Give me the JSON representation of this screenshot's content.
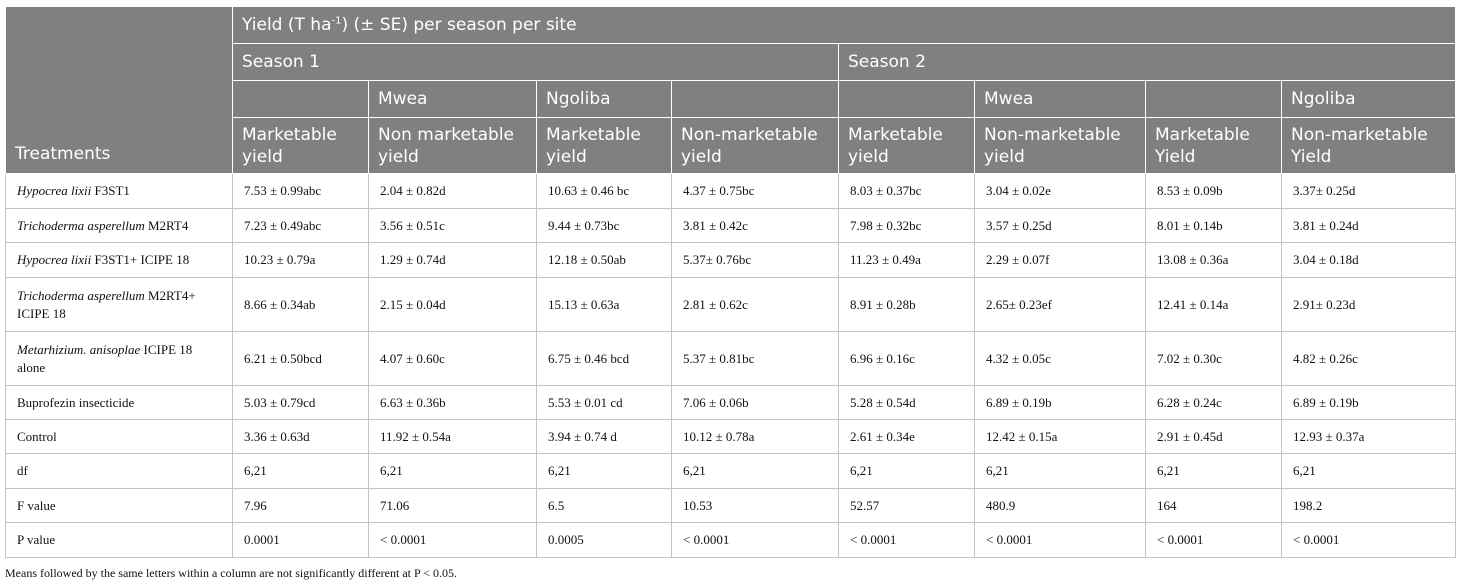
{
  "header": {
    "treatments": "Treatments",
    "yield_prefix": "Yield (T ha",
    "yield_sup": "-1",
    "yield_suffix": ") (± SE) per season per site",
    "season1": "Season 1",
    "season2": "Season 2",
    "site_mwea": "Mwea",
    "site_ngoliba": "Ngoliba",
    "columns": [
      "Marketable yield",
      "Non marketable yield",
      "Marketable yield",
      "Non-marketable yield",
      "Marketable yield",
      "Non-marketable yield",
      "Marketable Yield",
      "Non-marketable Yield"
    ]
  },
  "rows": [
    {
      "name_italic": "Hypocrea lixii",
      "name_rest": " F3ST1",
      "values": [
        "7.53 ± 0.99abc",
        "2.04 ± 0.82d",
        "10.63 ± 0.46 bc",
        "4.37 ± 0.75bc",
        "8.03 ± 0.37bc",
        "3.04 ± 0.02e",
        "8.53 ± 0.09b",
        "3.37± 0.25d"
      ]
    },
    {
      "name_italic": "Trichoderma asperellum",
      "name_rest": " M2RT4",
      "values": [
        "7.23 ± 0.49abc",
        "3.56 ± 0.51c",
        "9.44 ± 0.73bc",
        "3.81 ± 0.42c",
        "7.98 ± 0.32bc",
        "3.57 ± 0.25d",
        "8.01 ± 0.14b",
        "3.81 ± 0.24d"
      ]
    },
    {
      "name_italic": "Hypocrea lixii",
      "name_rest": " F3ST1+ ICIPE 18",
      "values": [
        "10.23 ± 0.79a",
        "1.29 ± 0.74d",
        "12.18 ± 0.50ab",
        "5.37± 0.76bc",
        "11.23 ± 0.49a",
        "2.29 ± 0.07f",
        "13.08 ± 0.36a",
        "3.04 ± 0.18d"
      ]
    },
    {
      "name_italic": "Trichoderma asperellum",
      "name_rest": " M2RT4+ ICIPE 18",
      "values": [
        "8.66 ± 0.34ab",
        "2.15 ± 0.04d",
        "15.13 ± 0.63a",
        "2.81 ± 0.62c",
        "8.91 ± 0.28b",
        "2.65± 0.23ef",
        "12.41 ± 0.14a",
        "2.91± 0.23d"
      ]
    },
    {
      "name_italic": "Metarhizium. anisoplae",
      "name_rest": " ICIPE 18 alone",
      "values": [
        "6.21 ± 0.50bcd",
        "4.07 ± 0.60c",
        "6.75 ± 0.46 bcd",
        "5.37 ± 0.81bc",
        "6.96 ± 0.16c",
        "4.32 ± 0.05c",
        "7.02 ± 0.30c",
        "4.82 ± 0.26c"
      ]
    },
    {
      "name_italic": "",
      "name_rest": "Buprofezin insecticide",
      "values": [
        "5.03 ± 0.79cd",
        "6.63 ± 0.36b",
        "5.53 ± 0.01 cd",
        "7.06 ± 0.06b",
        "5.28 ± 0.54d",
        "6.89 ± 0.19b",
        "6.28 ± 0.24c",
        "6.89 ± 0.19b"
      ]
    },
    {
      "name_italic": "",
      "name_rest": "Control",
      "values": [
        "3.36 ± 0.63d",
        "11.92 ± 0.54a",
        "3.94 ± 0.74 d",
        "10.12 ± 0.78a",
        "2.61 ± 0.34e",
        "12.42 ± 0.15a",
        "2.91 ± 0.45d",
        "12.93 ± 0.37a"
      ]
    },
    {
      "name_italic": "",
      "name_rest": "df",
      "values": [
        "6,21",
        "6,21",
        "6,21",
        "6,21",
        "6,21",
        "6,21",
        "6,21",
        "6,21"
      ]
    },
    {
      "name_italic": "",
      "name_rest": "F value",
      "values": [
        "7.96",
        "71.06",
        "6.5",
        "10.53",
        "52.57",
        "480.9",
        "164",
        "198.2"
      ]
    },
    {
      "name_italic": "",
      "name_rest": "P value",
      "values": [
        "0.0001",
        "< 0.0001",
        "0.0005",
        "< 0.0001",
        "< 0.0001",
        "< 0.0001",
        "< 0.0001",
        "< 0.0001"
      ]
    }
  ],
  "footnote": "Means followed by the same letters within a column are not significantly different at P < 0.05."
}
